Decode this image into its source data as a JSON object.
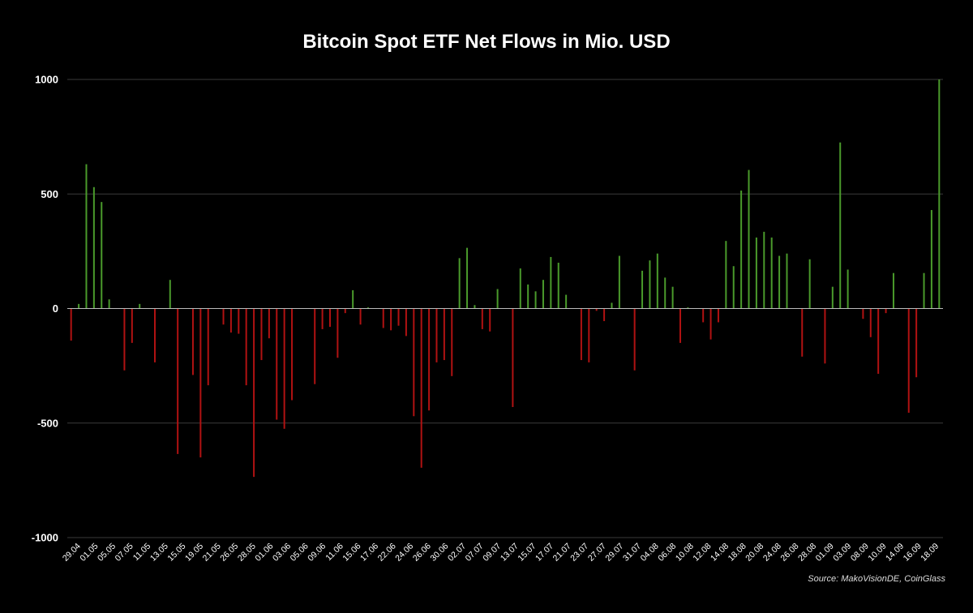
{
  "chart_data": {
    "type": "bar",
    "title": "Bitcoin Spot ETF Net Flows in Mio. USD",
    "xlabel": "",
    "ylabel": "",
    "ylim": [
      -1000,
      1000
    ],
    "yticks": [
      "1000",
      "500",
      "0",
      "-500",
      "-1000"
    ],
    "grid": true,
    "legend": "none",
    "colors": {
      "positive": "#4a9a2b",
      "negative": "#b01212",
      "background": "#000000",
      "grid": "#3a3a3a",
      "axis": "#bbbbbb"
    },
    "tick_labels": [
      "29.04",
      "01.05",
      "05.05",
      "07.05",
      "11.05",
      "13.05",
      "15.05",
      "19.05",
      "21.05",
      "26.05",
      "28.05",
      "01.06",
      "03.06",
      "05.06",
      "09.06",
      "11.06",
      "15.06",
      "17.06",
      "22.06",
      "24.06",
      "26.06",
      "30.06",
      "02.07",
      "07.07",
      "09.07",
      "13.07",
      "15.07",
      "17.07",
      "21.07",
      "23.07",
      "27.07",
      "29.07",
      "31.07",
      "04.08",
      "06.08",
      "10.08",
      "12.08",
      "14.08",
      "18.08",
      "20.08",
      "24.08",
      "26.08",
      "28.08",
      "01.09",
      "03.09",
      "08.09",
      "10.09",
      "14.09",
      "16.09",
      "18.09"
    ],
    "values": [
      -140,
      20,
      630,
      530,
      465,
      40,
      0,
      -270,
      -150,
      20,
      0,
      -235,
      0,
      125,
      -635,
      0,
      -290,
      -650,
      -335,
      0,
      -70,
      -105,
      -110,
      -335,
      -735,
      -225,
      -130,
      -485,
      -525,
      -400,
      0,
      0,
      -330,
      -90,
      -80,
      -215,
      -20,
      80,
      -70,
      5,
      0,
      -85,
      -95,
      -75,
      -120,
      -470,
      -695,
      -445,
      -235,
      -225,
      -295,
      220,
      265,
      15,
      -90,
      -100,
      85,
      0,
      -430,
      175,
      105,
      75,
      125,
      225,
      200,
      60,
      0,
      -225,
      -235,
      -10,
      -55,
      25,
      230,
      0,
      -270,
      165,
      210,
      240,
      135,
      95,
      -150,
      5,
      0,
      -60,
      -135,
      -60,
      295,
      185,
      515,
      605,
      310,
      335,
      310,
      230,
      240,
      0,
      -210,
      215,
      0,
      -240,
      95,
      725,
      170,
      0,
      -45,
      -125,
      -285,
      -20,
      155,
      0,
      -455,
      -300,
      155,
      430,
      1000
    ]
  },
  "source": "Source: MakoVisionDE, CoinGlass"
}
